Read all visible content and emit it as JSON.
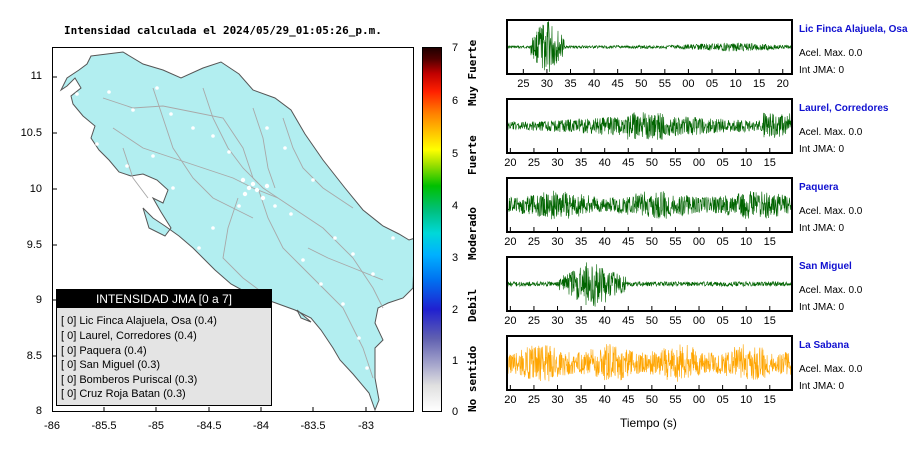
{
  "map": {
    "title": "Intensidad calculada el 2024/05/29_01:05:26_p.m.",
    "y_ticks": [
      "11",
      "10.5",
      "10",
      "9.5",
      "9",
      "8.5",
      "8"
    ],
    "x_ticks": [
      "-86",
      "-85.5",
      "-85",
      "-84.5",
      "-84",
      "-83.5",
      "-83"
    ],
    "land_color": "#b2eef0",
    "legend": {
      "title": "INTENSIDAD JMA [0 a 7]",
      "rows": [
        "[ 0]  Lic Finca Alajuela, Osa (0.4)",
        "[ 0]  Laurel, Corredores (0.4)",
        "[ 0]  Paquera (0.4)",
        "[ 0]  San Miguel (0.3)",
        "[ 0]  Bomberos Puriscal (0.3)",
        "[ 0]  Cruz Roja Batan (0.3)"
      ]
    }
  },
  "colorbar": {
    "ticks": [
      "7",
      "6",
      "5",
      "4",
      "3",
      "2",
      "1",
      "0"
    ],
    "category_labels": [
      "Muy Fuerte",
      "Fuerte",
      "Moderado",
      "Debil",
      "No sentido"
    ]
  },
  "stations": [
    {
      "name": "Lic Finca Alajuela, Osa",
      "accel": "Acel. Max. 0.0",
      "int": "Int JMA: 0",
      "color": "#006400",
      "ticks": [
        "25",
        "30",
        "35",
        "40",
        "45",
        "50",
        "55",
        "00",
        "05",
        "10",
        "15",
        "20"
      ]
    },
    {
      "name": "Laurel, Corredores",
      "accel": "Acel. Max. 0.0",
      "int": "Int JMA: 0",
      "color": "#006400",
      "ticks": [
        "20",
        "25",
        "30",
        "35",
        "40",
        "45",
        "50",
        "55",
        "00",
        "05",
        "10",
        "15"
      ]
    },
    {
      "name": "Paquera",
      "accel": "Acel. Max. 0.0",
      "int": "Int JMA: 0",
      "color": "#006400",
      "ticks": [
        "20",
        "25",
        "30",
        "35",
        "40",
        "45",
        "50",
        "55",
        "00",
        "05",
        "10",
        "15"
      ]
    },
    {
      "name": "San Miguel",
      "accel": "Acel. Max. 0.0",
      "int": "Int JMA: 0",
      "color": "#006400",
      "ticks": [
        "20",
        "25",
        "30",
        "35",
        "40",
        "45",
        "50",
        "55",
        "00",
        "05",
        "10",
        "15"
      ]
    },
    {
      "name": "La Sabana",
      "accel": "Acel. Max. 0.0",
      "int": "Int JMA: 0",
      "color": "#ffa500",
      "ticks": [
        "20",
        "25",
        "30",
        "35",
        "40",
        "45",
        "50",
        "55",
        "00",
        "05",
        "10",
        "15"
      ]
    }
  ],
  "waveforms": {
    "xlabel": "Tiempo (s)"
  },
  "chart_data": {
    "type": "heatmap",
    "title": "Intensidad calculada el 2024/05/29_01:05:26_p.m.",
    "xlabel": "",
    "ylabel": "",
    "xlim": [
      -86,
      -82.6
    ],
    "ylim": [
      8,
      11.3
    ],
    "colorbar_range": [
      0,
      7
    ],
    "stations_intensity": [
      {
        "name": "Lic Finca Alajuela, Osa",
        "intensity": 0,
        "value": 0.4
      },
      {
        "name": "Laurel, Corredores",
        "intensity": 0,
        "value": 0.4
      },
      {
        "name": "Paquera",
        "intensity": 0,
        "value": 0.4
      },
      {
        "name": "San Miguel",
        "intensity": 0,
        "value": 0.3
      },
      {
        "name": "Bomberos Puriscal",
        "intensity": 0,
        "value": 0.3
      },
      {
        "name": "Cruz Roja Batan",
        "intensity": 0,
        "value": 0.3
      }
    ],
    "waveform_acel_max": [
      0.0,
      0.0,
      0.0,
      0.0,
      0.0
    ]
  }
}
